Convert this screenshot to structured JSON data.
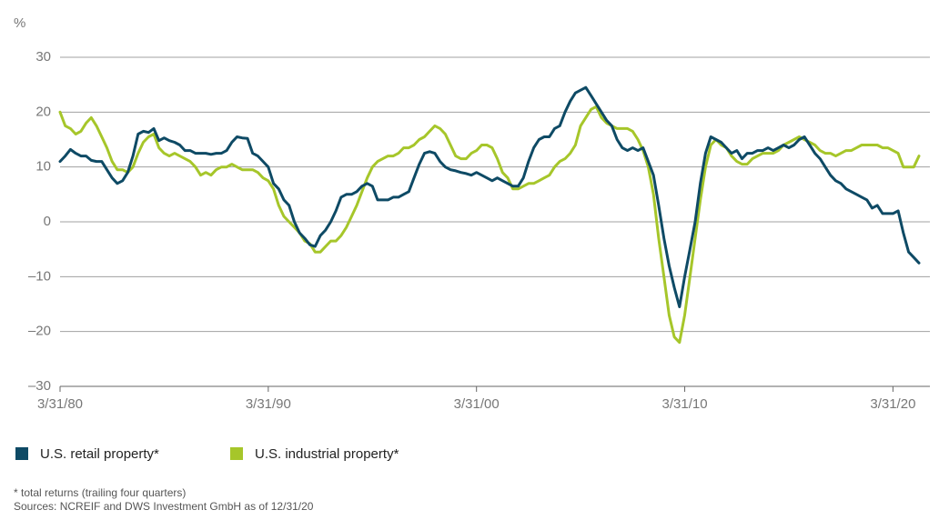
{
  "chart_data": {
    "type": "line",
    "y_label": "%",
    "categories": [
      "3/31/80",
      null,
      null,
      null,
      null,
      null,
      null,
      null,
      null,
      null,
      null,
      null,
      null,
      null,
      null,
      null,
      null,
      null,
      null,
      null,
      null,
      null,
      null,
      null,
      null,
      null,
      null,
      null,
      null,
      null,
      null,
      null,
      null,
      null,
      null,
      null,
      null,
      null,
      null,
      null,
      "3/31/90",
      null,
      null,
      null,
      null,
      null,
      null,
      null,
      null,
      null,
      null,
      null,
      null,
      null,
      null,
      null,
      null,
      null,
      null,
      null,
      null,
      null,
      null,
      null,
      null,
      null,
      null,
      null,
      null,
      null,
      null,
      null,
      null,
      null,
      null,
      null,
      null,
      null,
      null,
      null,
      "3/31/00",
      null,
      null,
      null,
      null,
      null,
      null,
      null,
      null,
      null,
      null,
      null,
      null,
      null,
      null,
      null,
      null,
      null,
      null,
      null,
      null,
      null,
      null,
      null,
      null,
      null,
      null,
      null,
      null,
      null,
      null,
      null,
      null,
      null,
      null,
      null,
      null,
      null,
      null,
      null,
      "3/31/10",
      null,
      null,
      null,
      null,
      null,
      null,
      null,
      null,
      null,
      null,
      null,
      null,
      null,
      null,
      null,
      null,
      null,
      null,
      null,
      null,
      null,
      null,
      null,
      null,
      null,
      null,
      null,
      null,
      null,
      null,
      null,
      null,
      null,
      null,
      null,
      null,
      null,
      null,
      null,
      "3/31/20",
      null,
      null,
      null,
      null,
      null
    ],
    "series": [
      {
        "name": "U.S. retail property*",
        "color": "#0e4a65",
        "values": [
          11,
          12,
          13.2,
          12.5,
          12,
          12,
          11.2,
          11,
          11,
          9.5,
          8,
          7,
          7.5,
          9,
          12,
          16,
          16.5,
          16.3,
          17,
          14.8,
          15.3,
          14.8,
          14.5,
          14,
          13,
          13,
          12.5,
          12.5,
          12.5,
          12.3,
          12.5,
          12.5,
          13,
          14.5,
          15.5,
          15.3,
          15.2,
          12.5,
          12,
          11,
          10,
          7,
          6,
          4,
          3,
          0,
          -2,
          -3,
          -4.2,
          -4.5,
          -2.5,
          -1.5,
          0,
          2,
          4.5,
          5,
          5,
          5.5,
          6.5,
          7,
          6.5,
          4,
          4,
          4,
          4.5,
          4.5,
          5,
          5.5,
          8,
          10.5,
          12.5,
          12.8,
          12.5,
          11,
          10,
          9.5,
          9.3,
          9,
          8.8,
          8.5,
          9,
          8.5,
          8,
          7.5,
          8,
          7.5,
          7,
          6.5,
          6.5,
          8,
          11,
          13.5,
          15,
          15.5,
          15.5,
          17,
          17.5,
          20,
          22,
          23.5,
          24,
          24.5,
          23,
          21.5,
          20,
          18.5,
          17.5,
          15,
          13.5,
          13,
          13.5,
          13,
          13.5,
          11,
          8.5,
          3,
          -3,
          -8,
          -12,
          -15.5,
          -10,
          -5,
          0,
          7,
          12.5,
          15.5,
          15,
          14.5,
          13.5,
          12.5,
          13,
          11.5,
          12.5,
          12.5,
          13,
          13,
          13.5,
          13,
          13.5,
          14,
          13.5,
          14,
          15,
          15.5,
          14,
          12.5,
          11.5,
          10,
          8.5,
          7.5,
          7,
          6,
          5.5,
          5,
          4.5,
          4,
          2.5,
          3,
          1.5,
          1.5,
          1.5,
          2,
          -2,
          -5.5,
          -6.5,
          -7.5
        ]
      },
      {
        "name": "U.S. industrial property*",
        "color": "#a6c62a",
        "values": [
          20,
          17.5,
          17,
          16,
          16.5,
          18,
          19,
          17.5,
          15.5,
          13.5,
          11,
          9.5,
          9.5,
          9,
          10,
          12.5,
          14.5,
          15.5,
          16,
          13.5,
          12.5,
          12,
          12.5,
          12,
          11.5,
          11,
          10,
          8.5,
          9,
          8.5,
          9.5,
          10,
          10,
          10.5,
          10,
          9.5,
          9.5,
          9.5,
          9,
          8,
          7.5,
          6,
          3,
          1,
          0,
          -1,
          -2,
          -3.5,
          -4,
          -5.5,
          -5.5,
          -4.5,
          -3.5,
          -3.5,
          -2.5,
          -1,
          1,
          3,
          5.5,
          8,
          10,
          11,
          11.5,
          12,
          12,
          12.5,
          13.5,
          13.5,
          14,
          15,
          15.5,
          16.5,
          17.5,
          17,
          16,
          14,
          12,
          11.5,
          11.5,
          12.5,
          13,
          14,
          14,
          13.5,
          11.5,
          9,
          8,
          6,
          6,
          6.5,
          7,
          7,
          7.5,
          8,
          8.5,
          10,
          11,
          11.5,
          12.5,
          14,
          17.5,
          19,
          20.5,
          21,
          19,
          18,
          17.5,
          17,
          17,
          17,
          16.5,
          15,
          13,
          10,
          5,
          -3,
          -10,
          -17,
          -21,
          -22,
          -17,
          -10,
          -3,
          4,
          10,
          14,
          15,
          14,
          13.5,
          12,
          11,
          10.5,
          10.5,
          11.5,
          12,
          12.5,
          12.5,
          12.5,
          13,
          14,
          14.5,
          15,
          15.5,
          15,
          14.5,
          14,
          13,
          12.5,
          12.5,
          12,
          12.5,
          13,
          13,
          13.5,
          14,
          14,
          14,
          14,
          13.5,
          13.5,
          13,
          12.5,
          10,
          10,
          10,
          12
        ]
      }
    ],
    "ylim": [
      -30,
      30
    ],
    "yticks": [
      {
        "value": -30,
        "label": "–30"
      },
      {
        "value": -20,
        "label": "–20"
      },
      {
        "value": -10,
        "label": "–10"
      },
      0,
      10,
      20,
      30
    ],
    "grid": true,
    "legend": "bottom",
    "footnote": "* total returns (trailing four quarters)",
    "source": "Sources: NCREIF and DWS Investment GmbH as of 12/31/20"
  }
}
